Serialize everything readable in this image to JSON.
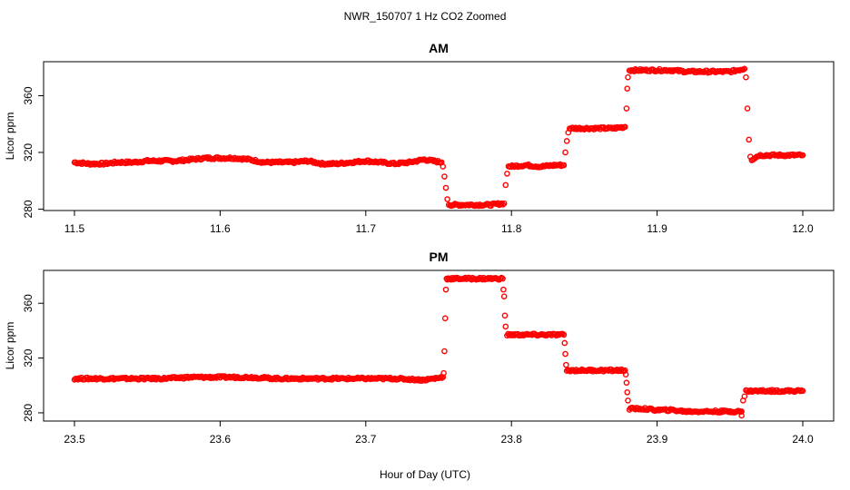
{
  "title": "NWR_150707  1 Hz CO2 Zoomed",
  "xlabel": "Hour of Day (UTC)",
  "colors": {
    "points": "#ff0000",
    "axis": "#000000"
  },
  "chart_data": [
    {
      "type": "scatter",
      "title": "AM",
      "ylabel": "Licor ppm",
      "xlim": [
        11.5,
        12.0
      ],
      "ylim": [
        279,
        384
      ],
      "xticks": [
        "11.5",
        "11.6",
        "11.7",
        "11.8",
        "11.9",
        "12.0"
      ],
      "yticks": [
        "280",
        "320",
        "360"
      ],
      "marker": "open-circle",
      "segments": [
        {
          "x": [
            11.5,
            11.51,
            11.52,
            11.53,
            11.54,
            11.55,
            11.56,
            11.57,
            11.58,
            11.59,
            11.6,
            11.61,
            11.62,
            11.63,
            11.64,
            11.65,
            11.66,
            11.67,
            11.68,
            11.69,
            11.7,
            11.71,
            11.72,
            11.73,
            11.74,
            11.752
          ],
          "y": [
            313,
            312,
            312,
            313,
            313,
            314,
            314,
            314,
            315,
            316,
            316,
            316,
            315,
            313,
            313,
            313,
            314,
            312,
            312,
            313,
            314,
            313,
            312,
            313,
            315,
            313
          ]
        },
        {
          "x": [
            11.753,
            11.754,
            11.755,
            11.756,
            11.757
          ],
          "y": [
            310,
            303,
            295,
            287,
            283
          ]
        },
        {
          "x": [
            11.758,
            11.765,
            11.775,
            11.785,
            11.795
          ],
          "y": [
            283,
            283,
            283,
            283,
            284
          ]
        },
        {
          "x": [
            11.796,
            11.797
          ],
          "y": [
            297,
            305
          ]
        },
        {
          "x": [
            11.798,
            11.81,
            11.82,
            11.83,
            11.836
          ],
          "y": [
            310,
            311,
            310,
            311,
            311
          ]
        },
        {
          "x": [
            11.837,
            11.838,
            11.839
          ],
          "y": [
            320,
            328,
            334
          ]
        },
        {
          "x": [
            11.84,
            11.85,
            11.86,
            11.87,
            11.878
          ],
          "y": [
            337,
            337,
            337,
            337,
            338
          ]
        },
        {
          "x": [
            11.879,
            11.8795,
            11.88
          ],
          "y": [
            351,
            365,
            373
          ]
        },
        {
          "x": [
            11.881,
            11.89,
            11.9,
            11.91,
            11.92,
            11.93,
            11.94,
            11.95,
            11.96
          ],
          "y": [
            378,
            378,
            378,
            378,
            377,
            377,
            377,
            377,
            379
          ]
        },
        {
          "x": [
            11.961,
            11.962,
            11.963,
            11.964
          ],
          "y": [
            373,
            351,
            329,
            317
          ]
        },
        {
          "x": [
            11.965,
            11.97,
            11.98,
            11.99,
            12.0
          ],
          "y": [
            315,
            318,
            318,
            318,
            318
          ]
        }
      ]
    },
    {
      "type": "scatter",
      "title": "PM",
      "ylabel": "Licor ppm",
      "xlim": [
        23.5,
        24.0
      ],
      "ylim": [
        274,
        384
      ],
      "xticks": [
        "23.5",
        "23.6",
        "23.7",
        "23.8",
        "23.9",
        "24.0"
      ],
      "yticks": [
        "280",
        "320",
        "360"
      ],
      "marker": "open-circle",
      "segments": [
        {
          "x": [
            23.5,
            23.52,
            23.54,
            23.56,
            23.58,
            23.6,
            23.62,
            23.64,
            23.66,
            23.68,
            23.7,
            23.72,
            23.74,
            23.753
          ],
          "y": [
            305,
            305,
            305,
            305,
            306,
            306,
            306,
            305,
            305,
            305,
            305,
            305,
            304,
            306
          ]
        },
        {
          "x": [
            23.7535,
            23.754,
            23.7545,
            23.755,
            23.7555
          ],
          "y": [
            309,
            325,
            349,
            370,
            378
          ]
        },
        {
          "x": [
            23.756,
            23.765,
            23.775,
            23.785,
            23.794
          ],
          "y": [
            378,
            378,
            378,
            378,
            378
          ]
        },
        {
          "x": [
            23.7945,
            23.795,
            23.7955,
            23.796
          ],
          "y": [
            370,
            365,
            351,
            343
          ]
        },
        {
          "x": [
            23.797,
            23.81,
            23.82,
            23.83,
            23.836
          ],
          "y": [
            337,
            337,
            337,
            337,
            337
          ]
        },
        {
          "x": [
            23.8365,
            23.837,
            23.8375
          ],
          "y": [
            331,
            323,
            315
          ]
        },
        {
          "x": [
            23.838,
            23.85,
            23.86,
            23.87,
            23.878
          ],
          "y": [
            311,
            311,
            311,
            311,
            311
          ]
        },
        {
          "x": [
            23.8785,
            23.879,
            23.8795,
            23.88
          ],
          "y": [
            308,
            302,
            295,
            289
          ]
        },
        {
          "x": [
            23.881,
            23.89,
            23.9,
            23.91,
            23.92,
            23.93,
            23.94,
            23.95,
            23.958
          ],
          "y": [
            283,
            283,
            282,
            282,
            281,
            281,
            281,
            281,
            281
          ]
        },
        {
          "x": [
            23.958,
            23.959,
            23.96
          ],
          "y": [
            278,
            289,
            292
          ]
        },
        {
          "x": [
            23.961,
            23.97,
            23.98,
            23.99,
            24.0
          ],
          "y": [
            296,
            296,
            296,
            296,
            296
          ]
        }
      ]
    }
  ]
}
